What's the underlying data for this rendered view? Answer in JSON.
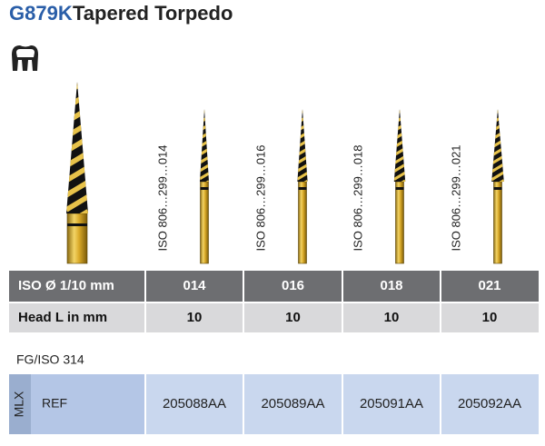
{
  "header": {
    "code": "G879K",
    "title": "Tapered Torpedo"
  },
  "iso_codes": [
    "ISO 806…299…014",
    "ISO 806…299…016",
    "ISO 806…299…018",
    "ISO 806…299…021"
  ],
  "spec_table": {
    "rows": [
      {
        "label": "ISO Ø 1/10 mm",
        "cells": [
          "014",
          "016",
          "018",
          "021"
        ]
      },
      {
        "label": "Head L in mm",
        "cells": [
          "10",
          "10",
          "10",
          "10"
        ]
      }
    ]
  },
  "shank": "FG/ISO 314",
  "ref_table": {
    "group": "MLX",
    "label": "REF",
    "cells": [
      "205088AA",
      "205089AA",
      "205091AA",
      "205092AA"
    ]
  }
}
